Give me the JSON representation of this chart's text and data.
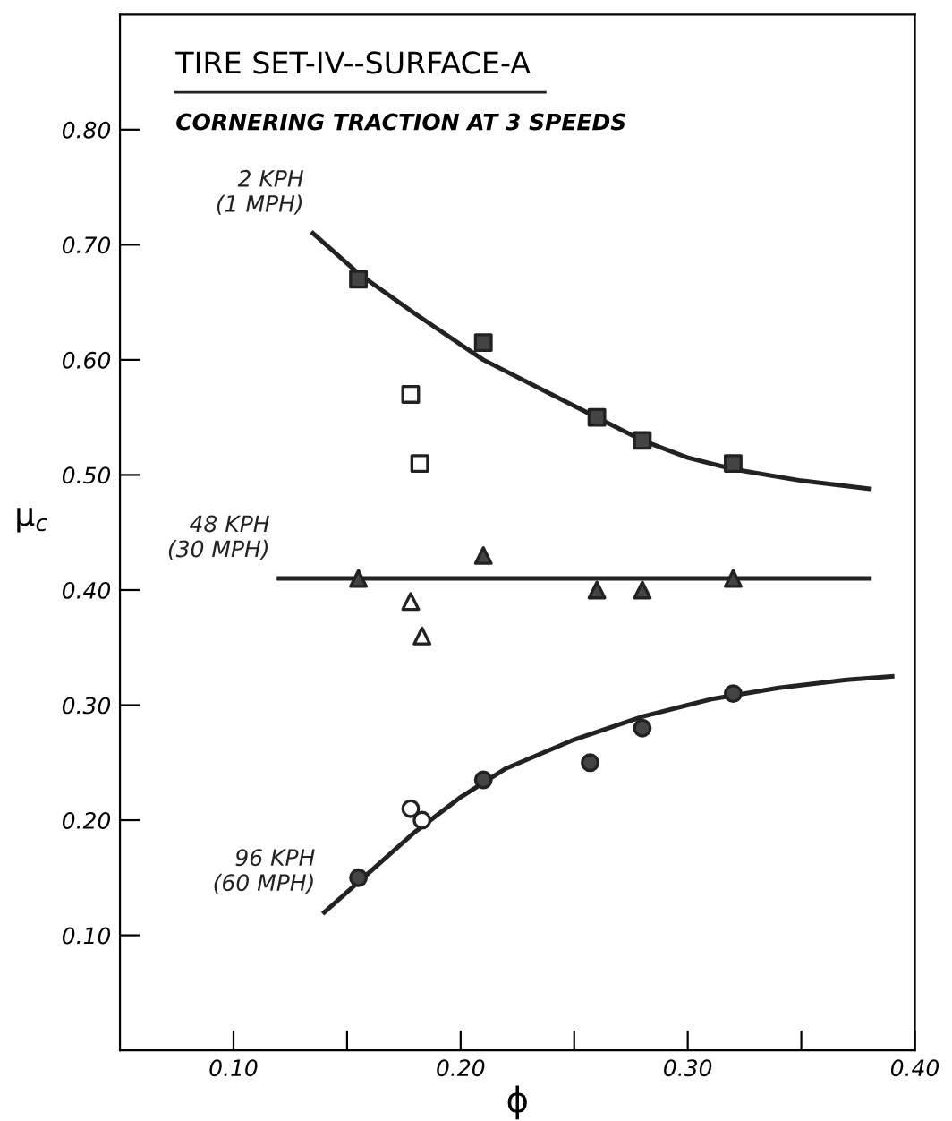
{
  "chart_data": {
    "type": "scatter",
    "title": "TIRE SET-IV--SURFACE-A",
    "subtitle": "CORNERING TRACTION AT 3 SPEEDS",
    "xlabel": "ϕ",
    "ylabel": "μ$_{c}$",
    "xlim": [
      0.05,
      0.4
    ],
    "ylim": [
      0,
      0.9
    ],
    "xticks": [
      {
        "value": 0.1,
        "label": "0.10"
      },
      {
        "value": 0.15,
        "label": null
      },
      {
        "value": 0.2,
        "label": "0.20"
      },
      {
        "value": 0.25,
        "label": null
      },
      {
        "value": 0.3,
        "label": "0.30"
      },
      {
        "value": 0.35,
        "label": null
      },
      {
        "value": 0.4,
        "label": "0.40"
      }
    ],
    "yticks": [
      {
        "value": 0.1,
        "label": "0.10"
      },
      {
        "value": 0.2,
        "label": "0.20"
      },
      {
        "value": 0.3,
        "label": "0.30"
      },
      {
        "value": 0.4,
        "label": "0.40"
      },
      {
        "value": 0.5,
        "label": "0.50"
      },
      {
        "value": 0.6,
        "label": "0.60"
      },
      {
        "value": 0.7,
        "label": "0.70"
      },
      {
        "value": 0.8,
        "label": "0.80"
      }
    ],
    "grid": false,
    "legend": false,
    "series": [
      {
        "type": "line",
        "name": "2 KPH\n(1 MPH)",
        "color": "#222222",
        "line_style": "solid",
        "marker": "none",
        "x": [
          0.135,
          0.155,
          0.18,
          0.21,
          0.24,
          0.26,
          0.28,
          0.3,
          0.32,
          0.35,
          0.38
        ],
        "values": [
          0.71,
          0.675,
          0.64,
          0.6,
          0.57,
          0.55,
          0.53,
          0.515,
          0.505,
          0.495,
          0.488
        ]
      },
      {
        "color": "#444444",
        "marker": "square",
        "x": [
          0.155,
          0.21,
          0.26,
          0.28,
          0.32
        ],
        "values": [
          0.67,
          0.615,
          0.55,
          0.53,
          0.51
        ]
      },
      {
        "color": "#ffffff",
        "marker": "square",
        "x": [
          0.178,
          0.182
        ],
        "values": [
          0.57,
          0.51
        ]
      },
      {
        "type": "line",
        "name": "48 KPH\n(30 MPH)",
        "color": "#222222",
        "line_style": "solid",
        "marker": "none",
        "x": [
          0.12,
          0.38
        ],
        "values": [
          0.41,
          0.41
        ]
      },
      {
        "color": "#444444",
        "marker": "triangle",
        "x": [
          0.155,
          0.21,
          0.26,
          0.28,
          0.32
        ],
        "values": [
          0.41,
          0.43,
          0.4,
          0.4,
          0.41
        ]
      },
      {
        "color": "#ffffff",
        "marker": "triangle",
        "x": [
          0.178,
          0.183
        ],
        "values": [
          0.39,
          0.36
        ]
      },
      {
        "type": "line",
        "name": "96 KPH\n(60 MPH)",
        "color": "#222222",
        "line_style": "solid",
        "marker": "none",
        "x": [
          0.14,
          0.16,
          0.18,
          0.2,
          0.22,
          0.25,
          0.28,
          0.31,
          0.34,
          0.37,
          0.39
        ],
        "values": [
          0.12,
          0.155,
          0.19,
          0.22,
          0.245,
          0.27,
          0.29,
          0.305,
          0.315,
          0.322,
          0.325
        ]
      },
      {
        "color": "#444444",
        "marker": "circle",
        "x": [
          0.155,
          0.21,
          0.257,
          0.28,
          0.32
        ],
        "values": [
          0.15,
          0.235,
          0.25,
          0.28,
          0.31
        ]
      },
      {
        "color": "#ffffff",
        "marker": "circle",
        "x": [
          0.178,
          0.183
        ],
        "values": [
          0.21,
          0.2
        ]
      }
    ]
  }
}
